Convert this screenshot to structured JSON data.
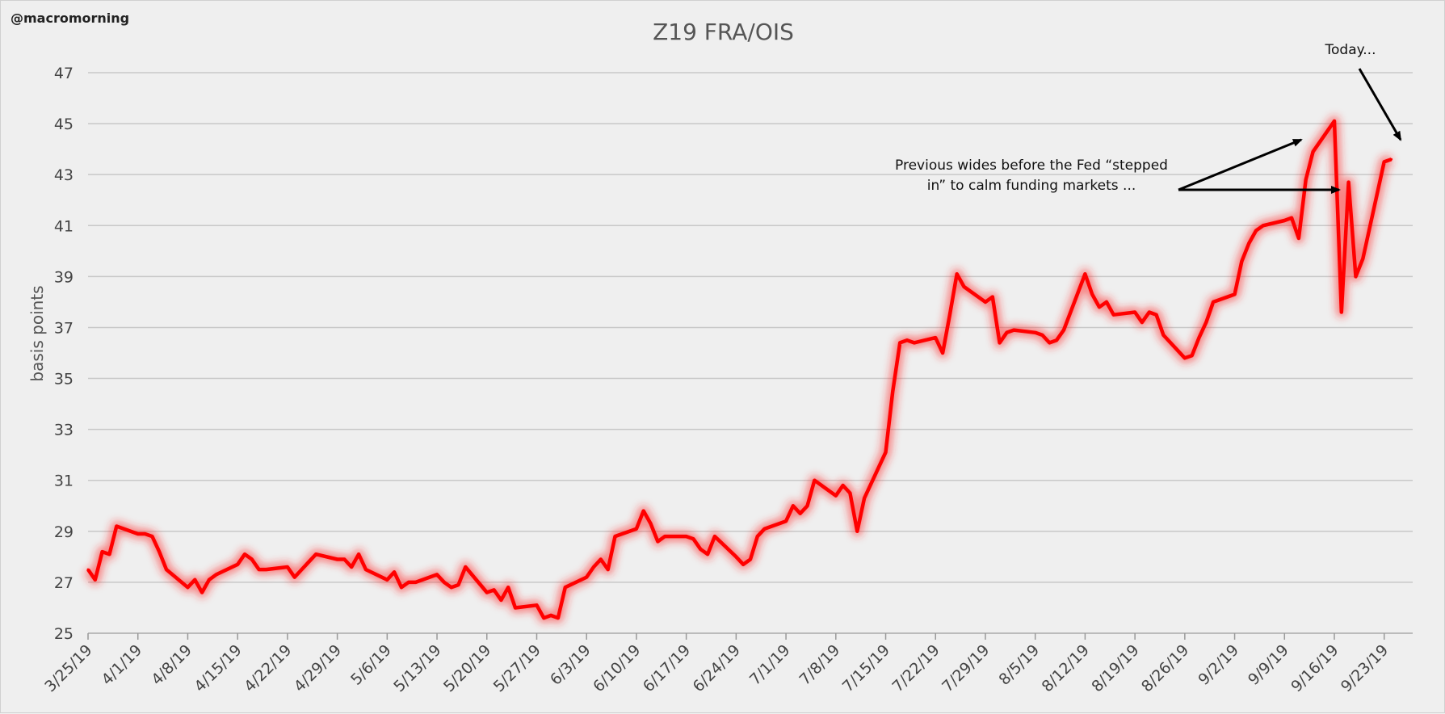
{
  "handle": "@macromorning",
  "chart_data": {
    "type": "line",
    "title": "Z19 FRA/OIS",
    "xlabel": "",
    "ylabel": "basis points",
    "ylim": [
      25,
      47
    ],
    "yticks": [
      25,
      27,
      29,
      31,
      33,
      35,
      37,
      39,
      41,
      43,
      45,
      47
    ],
    "x_tick_labels": [
      "3/25/19",
      "4/1/19",
      "4/8/19",
      "4/15/19",
      "4/22/19",
      "4/29/19",
      "5/6/19",
      "5/13/19",
      "5/20/19",
      "5/27/19",
      "6/3/19",
      "6/10/19",
      "6/17/19",
      "6/24/19",
      "7/1/19",
      "7/8/19",
      "7/15/19",
      "7/22/19",
      "7/29/19",
      "8/5/19",
      "8/12/19",
      "8/19/19",
      "8/26/19",
      "9/2/19",
      "9/9/19",
      "9/16/19",
      "9/23/19"
    ],
    "x_tick_days": [
      0,
      7,
      14,
      21,
      28,
      35,
      42,
      49,
      56,
      63,
      70,
      77,
      84,
      91,
      98,
      105,
      112,
      119,
      126,
      133,
      140,
      147,
      154,
      161,
      168,
      175,
      182
    ],
    "grid": true,
    "line_color": "#ff0000",
    "series": [
      {
        "x": [
          "3/25/19",
          "3/26/19",
          "3/27/19",
          "3/28/19",
          "3/29/19",
          "4/1/19",
          "4/2/19",
          "4/3/19",
          "4/4/19",
          "4/5/19",
          "4/8/19",
          "4/9/19",
          "4/10/19",
          "4/11/19",
          "4/12/19",
          "4/15/19",
          "4/16/19",
          "4/17/19",
          "4/18/19",
          "4/19/19",
          "4/22/19",
          "4/23/19",
          "4/24/19",
          "4/25/19",
          "4/26/19",
          "4/29/19",
          "4/30/19",
          "5/1/19",
          "5/2/19",
          "5/3/19",
          "5/6/19",
          "5/7/19",
          "5/8/19",
          "5/9/19",
          "5/10/19",
          "5/13/19",
          "5/14/19",
          "5/15/19",
          "5/16/19",
          "5/17/19",
          "5/20/19",
          "5/21/19",
          "5/22/19",
          "5/23/19",
          "5/24/19",
          "5/27/19",
          "5/28/19",
          "5/29/19",
          "5/30/19",
          "5/31/19",
          "6/3/19",
          "6/4/19",
          "6/5/19",
          "6/6/19",
          "6/7/19",
          "6/10/19",
          "6/11/19",
          "6/12/19",
          "6/13/19",
          "6/14/19",
          "6/17/19",
          "6/18/19",
          "6/19/19",
          "6/20/19",
          "6/21/19",
          "6/24/19",
          "6/25/19",
          "6/26/19",
          "6/27/19",
          "6/28/19",
          "7/1/19",
          "7/2/19",
          "7/3/19",
          "7/4/19",
          "7/5/19",
          "7/8/19",
          "7/9/19",
          "7/10/19",
          "7/11/19",
          "7/12/19",
          "7/15/19",
          "7/16/19",
          "7/17/19",
          "7/18/19",
          "7/19/19",
          "7/22/19",
          "7/23/19",
          "7/24/19",
          "7/25/19",
          "7/26/19",
          "7/29/19",
          "7/30/19",
          "7/31/19",
          "8/1/19",
          "8/2/19",
          "8/5/19",
          "8/6/19",
          "8/7/19",
          "8/8/19",
          "8/9/19",
          "8/12/19",
          "8/13/19",
          "8/14/19",
          "8/15/19",
          "8/16/19",
          "8/19/19",
          "8/20/19",
          "8/21/19",
          "8/22/19",
          "8/23/19",
          "8/26/19",
          "8/27/19",
          "8/28/19",
          "8/29/19",
          "8/30/19",
          "9/2/19",
          "9/3/19",
          "9/4/19",
          "9/5/19",
          "9/6/19",
          "9/9/19",
          "9/10/19",
          "9/11/19",
          "9/12/19",
          "9/13/19",
          "9/16/19",
          "9/17/19",
          "9/18/19",
          "9/19/19",
          "9/20/19",
          "9/23/19",
          "9/24/19"
        ],
        "y": [
          27.5,
          27.1,
          28.2,
          28.1,
          29.2,
          28.9,
          28.9,
          28.8,
          28.2,
          27.5,
          26.8,
          27.1,
          26.6,
          27.1,
          27.3,
          27.7,
          28.1,
          27.9,
          27.5,
          27.5,
          27.6,
          27.2,
          27.5,
          27.8,
          28.1,
          27.9,
          27.9,
          27.6,
          28.1,
          27.5,
          27.1,
          27.4,
          26.8,
          27.0,
          27.0,
          27.3,
          27.0,
          26.8,
          26.9,
          27.6,
          26.6,
          26.7,
          26.3,
          26.8,
          26.0,
          26.1,
          25.6,
          25.7,
          25.6,
          26.8,
          27.2,
          27.6,
          27.9,
          27.5,
          28.8,
          29.1,
          29.8,
          29.3,
          28.6,
          28.8,
          28.8,
          28.7,
          28.3,
          28.1,
          28.8,
          28.0,
          27.7,
          27.9,
          28.8,
          29.1,
          29.4,
          30.0,
          29.7,
          30.0,
          31.0,
          30.4,
          30.8,
          30.5,
          29.0,
          30.3,
          32.1,
          34.5,
          36.4,
          36.5,
          36.4,
          36.6,
          36.0,
          37.5,
          39.1,
          38.6,
          38.0,
          38.2,
          36.4,
          36.8,
          36.9,
          36.8,
          36.7,
          36.4,
          36.5,
          36.9,
          39.1,
          38.3,
          37.8,
          38.0,
          37.5,
          37.6,
          37.2,
          37.6,
          37.5,
          36.7,
          35.8,
          35.9,
          36.6,
          37.2,
          38.0,
          38.3,
          39.6,
          40.3,
          40.8,
          41.0,
          41.2,
          41.3,
          40.5,
          42.8,
          43.9,
          45.1,
          37.6,
          42.7,
          39.0,
          39.7,
          43.5,
          43.6
        ],
        "x_days": [
          0,
          1,
          2,
          3,
          4,
          7,
          8,
          9,
          10,
          11,
          14,
          15,
          16,
          17,
          18,
          21,
          22,
          23,
          24,
          25,
          28,
          29,
          30,
          31,
          32,
          35,
          36,
          37,
          38,
          39,
          42,
          43,
          44,
          45,
          46,
          49,
          50,
          51,
          52,
          53,
          56,
          57,
          58,
          59,
          60,
          63,
          64,
          65,
          66,
          67,
          70,
          71,
          72,
          73,
          74,
          77,
          78,
          79,
          80,
          81,
          84,
          85,
          86,
          87,
          88,
          91,
          92,
          93,
          94,
          95,
          98,
          99,
          100,
          101,
          102,
          105,
          106,
          107,
          108,
          109,
          112,
          113,
          114,
          115,
          116,
          119,
          120,
          121,
          122,
          123,
          126,
          127,
          128,
          129,
          130,
          133,
          134,
          135,
          136,
          137,
          140,
          141,
          142,
          143,
          144,
          147,
          148,
          149,
          150,
          151,
          154,
          155,
          156,
          157,
          158,
          161,
          162,
          163,
          164,
          165,
          168,
          169,
          170,
          171,
          172,
          175,
          176,
          177,
          178,
          179,
          182,
          183
        ]
      }
    ],
    "annotations": [
      {
        "text_line1": "Previous wides before the Fed “stepped",
        "text_line2": "in” to calm funding markets ..."
      },
      {
        "text": "Today..."
      }
    ]
  }
}
